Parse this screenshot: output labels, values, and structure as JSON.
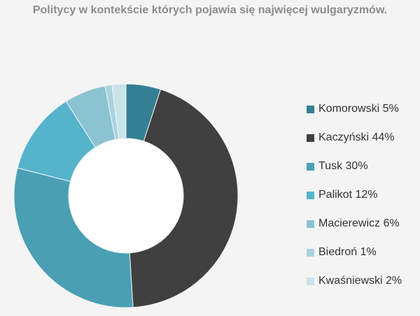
{
  "chart_data": {
    "type": "pie",
    "title": "Politycy w kontekście których pojawia się najwięcej wulgaryzmów.",
    "donut": true,
    "legend_position": "right",
    "slices": [
      {
        "label": "Komorowski 5%",
        "value": 5,
        "color": "#347f93"
      },
      {
        "label": "Kaczyński 44%",
        "value": 44,
        "color": "#404040"
      },
      {
        "label": "Tusk 30%",
        "value": 30,
        "color": "#4a9fb5"
      },
      {
        "label": "Palikot 12%",
        "value": 12,
        "color": "#55b3cc"
      },
      {
        "label": "Macierewicz 6%",
        "value": 6,
        "color": "#8cc3d3"
      },
      {
        "label": "Biedroń 1%",
        "value": 1,
        "color": "#a9d3df"
      },
      {
        "label": "Kwaśniewski 2%",
        "value": 2,
        "color": "#c9e3ea"
      }
    ]
  }
}
